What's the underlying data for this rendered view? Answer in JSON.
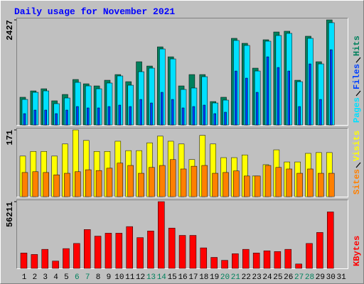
{
  "title": "Daily usage for November 2021",
  "chart_data": [
    {
      "type": "bar",
      "series": [
        {
          "name": "Pages",
          "color": "#00e0ff",
          "values": [
            590,
            754,
            787,
            492,
            623,
            984,
            902,
            836,
            968,
            1132,
            918,
            1230,
            1312,
            1755,
            1525,
            820,
            853,
            1115,
            508,
            574,
            1952,
            1837,
            1246,
            1935,
            2066,
            2116,
            1000,
            2001,
            1410,
            2362,
            null
          ]
        },
        {
          "name": "Files",
          "color": "#0040ff",
          "values": [
            262,
            344,
            344,
            262,
            344,
            426,
            394,
            394,
            426,
            459,
            426,
            590,
            508,
            754,
            590,
            394,
            426,
            459,
            262,
            295,
            1246,
            1082,
            754,
            1574,
            1328,
            1246,
            426,
            1410,
            590,
            1738,
            null
          ]
        },
        {
          "name": "Hits",
          "color": "#00805c",
          "values": [
            640,
            787,
            836,
            558,
            705,
            1050,
            951,
            902,
            1033,
            1164,
            1000,
            1460,
            1361,
            1804,
            1574,
            902,
            1164,
            1164,
            541,
            640,
            2001,
            1886,
            1312,
            1968,
            2148,
            2165,
            1033,
            2050,
            1460,
            2427,
            null
          ]
        }
      ],
      "ylim": [
        0,
        2427
      ],
      "yticks": [
        2427
      ]
    },
    {
      "type": "bar",
      "series": [
        {
          "name": "Sites",
          "color": "#ff8000",
          "values": [
            62,
            64,
            62,
            56,
            60,
            64,
            69,
            67,
            73,
            86,
            80,
            60,
            75,
            80,
            95,
            71,
            78,
            80,
            60,
            62,
            66,
            53,
            53,
            80,
            75,
            71,
            60,
            71,
            60,
            60,
            null
          ]
        },
        {
          "name": "Visits",
          "color": "#ffff00",
          "values": [
            104,
            116,
            116,
            104,
            135,
            171,
            144,
            116,
            116,
            142,
            118,
            118,
            138,
            155,
            142,
            135,
            95,
            157,
            135,
            100,
            100,
            107,
            53,
            82,
            120,
            89,
            89,
            111,
            113,
            113,
            null
          ]
        }
      ],
      "ylim": [
        0,
        171
      ],
      "yticks": [
        171
      ]
    },
    {
      "type": "bar",
      "categories": [
        "1",
        "2",
        "3",
        "4",
        "5",
        "6",
        "7",
        "8",
        "9",
        "10",
        "11",
        "12",
        "13",
        "14",
        "15",
        "16",
        "17",
        "18",
        "19",
        "20",
        "21",
        "22",
        "23",
        "24",
        "25",
        "26",
        "27",
        "28",
        "29",
        "30",
        "31"
      ],
      "category_colors": [
        "#000000",
        "#000000",
        "#000000",
        "#000000",
        "#000000",
        "#00805c",
        "#00805c",
        "#000000",
        "#000000",
        "#000000",
        "#000000",
        "#000000",
        "#00805c",
        "#00805c",
        "#000000",
        "#000000",
        "#000000",
        "#000000",
        "#000000",
        "#00805c",
        "#00805c",
        "#000000",
        "#000000",
        "#000000",
        "#000000",
        "#000000",
        "#00805c",
        "#00805c",
        "#000000",
        "#000000",
        "#000000"
      ],
      "series": [
        {
          "name": "KBytes",
          "color": "#ff0000",
          "values": [
            12972,
            11736,
            16060,
            6177,
            16678,
            21002,
            32738,
            27179,
            29650,
            29650,
            35209,
            25943,
            31503,
            56211,
            33974,
            27797,
            27797,
            17296,
            9266,
            6795,
            12354,
            16060,
            12972,
            14825,
            14207,
            16060,
            3706,
            21002,
            30267,
            47563,
            null
          ]
        }
      ],
      "ylim": [
        0,
        56211
      ],
      "yticks": [
        56211
      ]
    }
  ]
}
